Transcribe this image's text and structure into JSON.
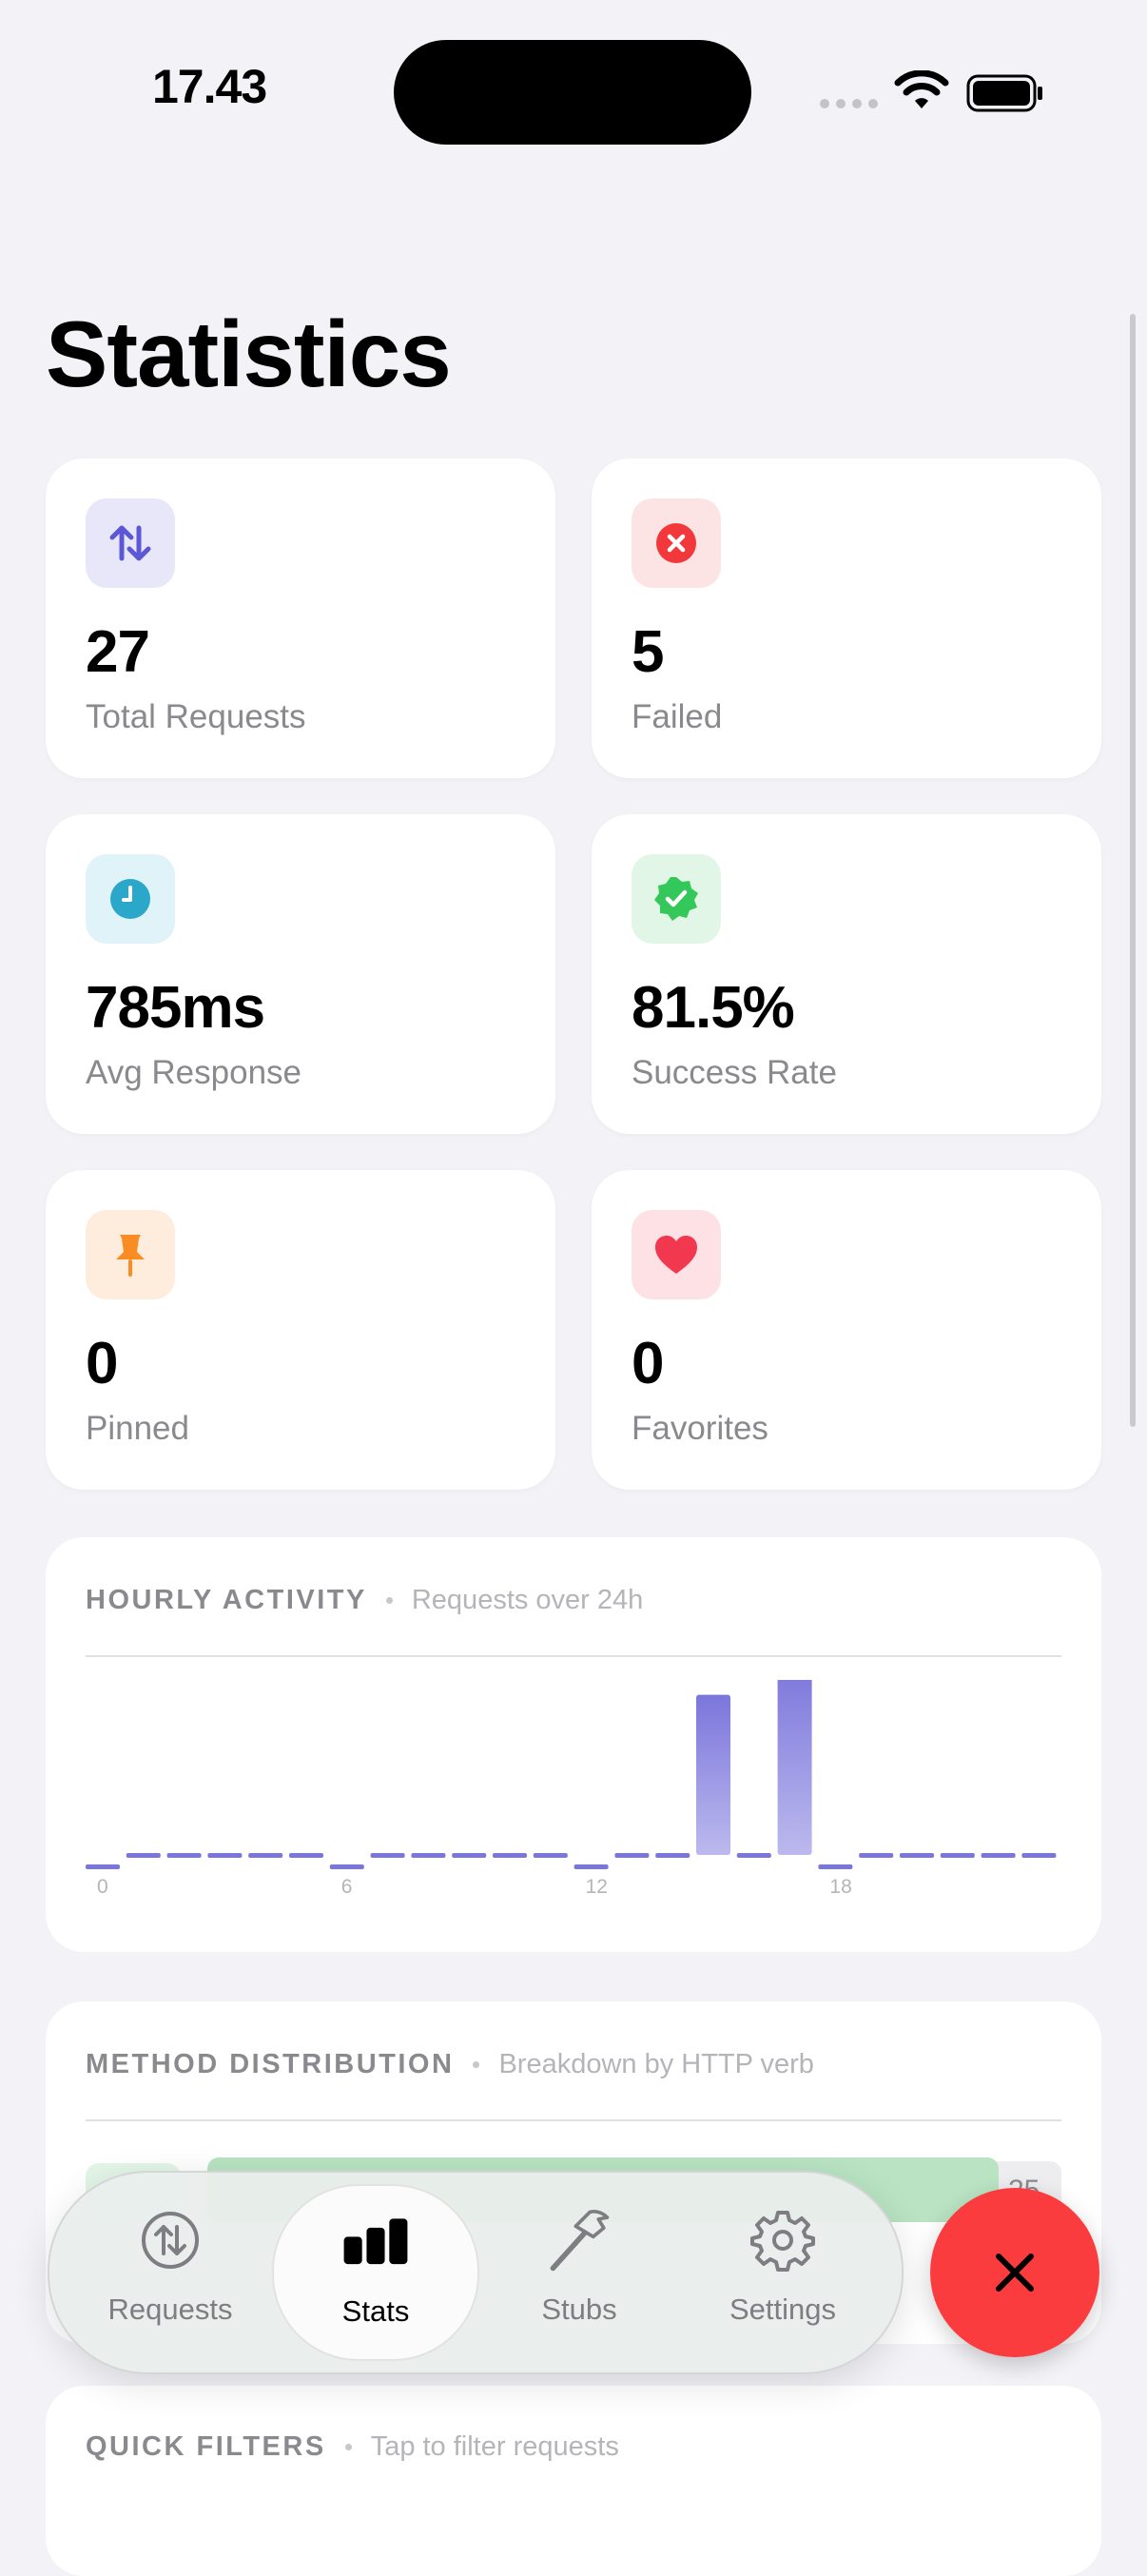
{
  "status_bar": {
    "time": "17.43"
  },
  "page": {
    "title": "Statistics"
  },
  "stats": [
    {
      "value": "27",
      "label": "Total Requests",
      "icon": "arrows-up-down-icon",
      "color": "#5b57d6"
    },
    {
      "value": "5",
      "label": "Failed",
      "icon": "x-circle-icon",
      "color": "#f2383b"
    },
    {
      "value": "785ms",
      "label": "Avg Response",
      "icon": "clock-icon",
      "color": "#2aa7c9"
    },
    {
      "value": "81.5%",
      "label": "Success Rate",
      "icon": "checkmark-seal-icon",
      "color": "#34c759"
    },
    {
      "value": "0",
      "label": "Pinned",
      "icon": "pin-icon",
      "color": "#fa8c24"
    },
    {
      "value": "0",
      "label": "Favorites",
      "icon": "heart-icon",
      "color": "#f2384e"
    }
  ],
  "hourly": {
    "title": "HOURLY ACTIVITY",
    "subtitle": "Requests over 24h",
    "chart_data": {
      "type": "bar",
      "categories": [
        "0",
        "1",
        "2",
        "3",
        "4",
        "5",
        "6",
        "7",
        "8",
        "9",
        "10",
        "11",
        "12",
        "13",
        "14",
        "15",
        "16",
        "17",
        "18",
        "19",
        "20",
        "21",
        "22",
        "23"
      ],
      "tick_labels": [
        "0",
        "6",
        "12",
        "18"
      ],
      "values": [
        0,
        0,
        0,
        0,
        0,
        0,
        0,
        0,
        0,
        0,
        0,
        0,
        0,
        0,
        0,
        10,
        0,
        12,
        0,
        0,
        0,
        0,
        0,
        0
      ],
      "ylim": [
        0,
        12
      ],
      "color": "#7b76db"
    }
  },
  "methods": {
    "title": "METHOD DISTRIBUTION",
    "subtitle": "Breakdown by HTTP verb",
    "top_count": "25"
  },
  "quick_filters": {
    "title": "QUICK FILTERS",
    "subtitle": "Tap to filter requests"
  },
  "tabbar": {
    "items": [
      {
        "label": "Requests",
        "icon": "arrows-circle-icon"
      },
      {
        "label": "Stats",
        "icon": "bar-chart-icon",
        "active": true
      },
      {
        "label": "Stubs",
        "icon": "hammer-icon"
      },
      {
        "label": "Settings",
        "icon": "gear-icon"
      }
    ]
  },
  "close_button": {
    "icon": "close-icon",
    "color": "#fb3c3e"
  }
}
